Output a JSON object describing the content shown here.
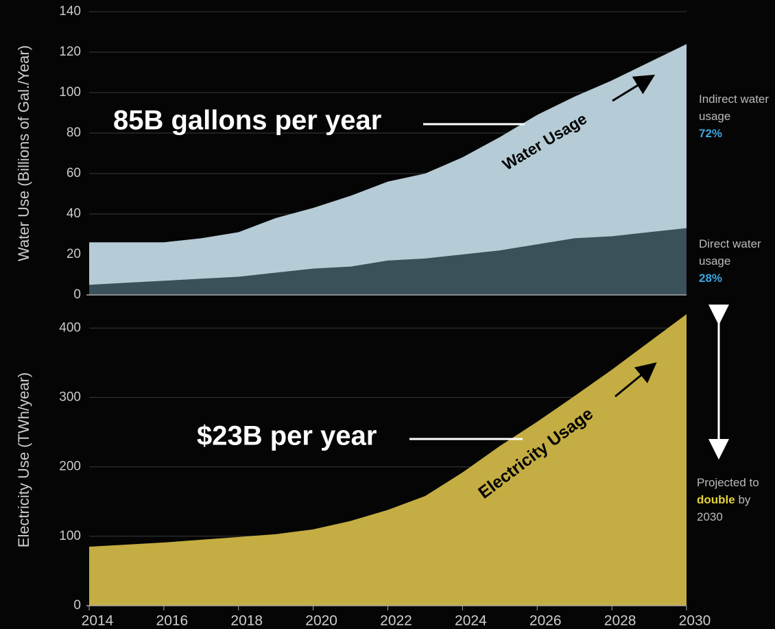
{
  "chart_data": [
    {
      "type": "area",
      "stacked": true,
      "ylabel": "Water Use (Billions of Gal./Year)",
      "x": [
        2014,
        2015,
        2016,
        2017,
        2018,
        2019,
        2020,
        2021,
        2022,
        2023,
        2024,
        2025,
        2026,
        2027,
        2028,
        2029,
        2030
      ],
      "xlim": [
        2014,
        2030
      ],
      "ylim": [
        0,
        140
      ],
      "yticks": [
        0,
        20,
        40,
        60,
        80,
        100,
        120,
        140
      ],
      "grid": true,
      "series": [
        {
          "name": "Direct water usage",
          "color": "#3a515a",
          "share": {
            "value": 28,
            "label": "28%"
          },
          "values": [
            5,
            6,
            7,
            8,
            9,
            11,
            13,
            14,
            17,
            18,
            20,
            22,
            25,
            28,
            29,
            31,
            33
          ]
        },
        {
          "name": "Indirect water usage",
          "color": "#b5cbd6",
          "share": {
            "value": 72,
            "label": "72%"
          },
          "values": [
            21,
            20,
            19,
            20,
            22,
            27,
            30,
            35,
            39,
            42,
            48,
            56,
            64,
            70,
            77,
            84,
            91
          ]
        }
      ],
      "annotations": [
        "85B gallons per year",
        "Water Usage"
      ]
    },
    {
      "type": "area",
      "ylabel": "Electricity Use (TWh/year)",
      "x": [
        2014,
        2015,
        2016,
        2017,
        2018,
        2019,
        2020,
        2021,
        2022,
        2023,
        2024,
        2025,
        2026,
        2027,
        2028,
        2029,
        2030
      ],
      "xlim": [
        2014,
        2030
      ],
      "xticks": [
        2014,
        2016,
        2018,
        2020,
        2022,
        2024,
        2026,
        2028,
        2030
      ],
      "ylim": [
        0,
        420
      ],
      "yticks": [
        0,
        100,
        200,
        300,
        400
      ],
      "grid": true,
      "series": [
        {
          "name": "Electricity Usage",
          "color": "#c4ad42",
          "values": [
            85,
            88,
            91,
            95,
            99,
            103,
            110,
            122,
            138,
            158,
            192,
            230,
            265,
            302,
            340,
            380,
            420
          ]
        }
      ],
      "annotations": [
        "$23B per year"
      ],
      "note": [
        "Projected to",
        "double",
        "by",
        "2030"
      ]
    }
  ]
}
